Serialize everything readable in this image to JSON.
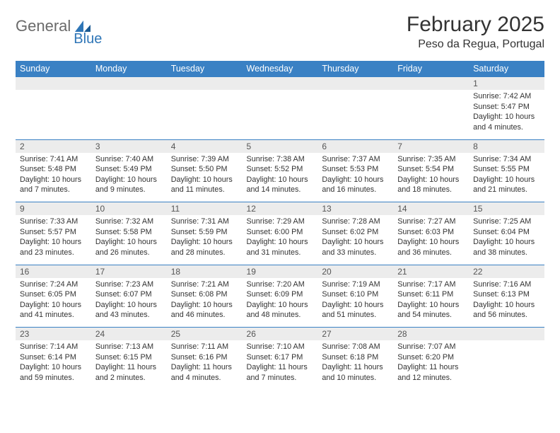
{
  "logo": {
    "word1": "General",
    "word2": "Blue"
  },
  "title": "February 2025",
  "location": "Peso da Regua, Portugal",
  "colors": {
    "header_bg": "#3a81c4",
    "header_text": "#ffffff",
    "daynum_bg": "#ececec",
    "daynum_text": "#555555",
    "border": "#3a81c4",
    "text": "#333333",
    "logo_gray": "#6a6a6a",
    "logo_blue": "#2f76b7"
  },
  "weekdays": [
    "Sunday",
    "Monday",
    "Tuesday",
    "Wednesday",
    "Thursday",
    "Friday",
    "Saturday"
  ],
  "weeks": [
    [
      null,
      null,
      null,
      null,
      null,
      null,
      {
        "n": "1",
        "sunrise": "Sunrise: 7:42 AM",
        "sunset": "Sunset: 5:47 PM",
        "daylight": "Daylight: 10 hours and 4 minutes."
      }
    ],
    [
      {
        "n": "2",
        "sunrise": "Sunrise: 7:41 AM",
        "sunset": "Sunset: 5:48 PM",
        "daylight": "Daylight: 10 hours and 7 minutes."
      },
      {
        "n": "3",
        "sunrise": "Sunrise: 7:40 AM",
        "sunset": "Sunset: 5:49 PM",
        "daylight": "Daylight: 10 hours and 9 minutes."
      },
      {
        "n": "4",
        "sunrise": "Sunrise: 7:39 AM",
        "sunset": "Sunset: 5:50 PM",
        "daylight": "Daylight: 10 hours and 11 minutes."
      },
      {
        "n": "5",
        "sunrise": "Sunrise: 7:38 AM",
        "sunset": "Sunset: 5:52 PM",
        "daylight": "Daylight: 10 hours and 14 minutes."
      },
      {
        "n": "6",
        "sunrise": "Sunrise: 7:37 AM",
        "sunset": "Sunset: 5:53 PM",
        "daylight": "Daylight: 10 hours and 16 minutes."
      },
      {
        "n": "7",
        "sunrise": "Sunrise: 7:35 AM",
        "sunset": "Sunset: 5:54 PM",
        "daylight": "Daylight: 10 hours and 18 minutes."
      },
      {
        "n": "8",
        "sunrise": "Sunrise: 7:34 AM",
        "sunset": "Sunset: 5:55 PM",
        "daylight": "Daylight: 10 hours and 21 minutes."
      }
    ],
    [
      {
        "n": "9",
        "sunrise": "Sunrise: 7:33 AM",
        "sunset": "Sunset: 5:57 PM",
        "daylight": "Daylight: 10 hours and 23 minutes."
      },
      {
        "n": "10",
        "sunrise": "Sunrise: 7:32 AM",
        "sunset": "Sunset: 5:58 PM",
        "daylight": "Daylight: 10 hours and 26 minutes."
      },
      {
        "n": "11",
        "sunrise": "Sunrise: 7:31 AM",
        "sunset": "Sunset: 5:59 PM",
        "daylight": "Daylight: 10 hours and 28 minutes."
      },
      {
        "n": "12",
        "sunrise": "Sunrise: 7:29 AM",
        "sunset": "Sunset: 6:00 PM",
        "daylight": "Daylight: 10 hours and 31 minutes."
      },
      {
        "n": "13",
        "sunrise": "Sunrise: 7:28 AM",
        "sunset": "Sunset: 6:02 PM",
        "daylight": "Daylight: 10 hours and 33 minutes."
      },
      {
        "n": "14",
        "sunrise": "Sunrise: 7:27 AM",
        "sunset": "Sunset: 6:03 PM",
        "daylight": "Daylight: 10 hours and 36 minutes."
      },
      {
        "n": "15",
        "sunrise": "Sunrise: 7:25 AM",
        "sunset": "Sunset: 6:04 PM",
        "daylight": "Daylight: 10 hours and 38 minutes."
      }
    ],
    [
      {
        "n": "16",
        "sunrise": "Sunrise: 7:24 AM",
        "sunset": "Sunset: 6:05 PM",
        "daylight": "Daylight: 10 hours and 41 minutes."
      },
      {
        "n": "17",
        "sunrise": "Sunrise: 7:23 AM",
        "sunset": "Sunset: 6:07 PM",
        "daylight": "Daylight: 10 hours and 43 minutes."
      },
      {
        "n": "18",
        "sunrise": "Sunrise: 7:21 AM",
        "sunset": "Sunset: 6:08 PM",
        "daylight": "Daylight: 10 hours and 46 minutes."
      },
      {
        "n": "19",
        "sunrise": "Sunrise: 7:20 AM",
        "sunset": "Sunset: 6:09 PM",
        "daylight": "Daylight: 10 hours and 48 minutes."
      },
      {
        "n": "20",
        "sunrise": "Sunrise: 7:19 AM",
        "sunset": "Sunset: 6:10 PM",
        "daylight": "Daylight: 10 hours and 51 minutes."
      },
      {
        "n": "21",
        "sunrise": "Sunrise: 7:17 AM",
        "sunset": "Sunset: 6:11 PM",
        "daylight": "Daylight: 10 hours and 54 minutes."
      },
      {
        "n": "22",
        "sunrise": "Sunrise: 7:16 AM",
        "sunset": "Sunset: 6:13 PM",
        "daylight": "Daylight: 10 hours and 56 minutes."
      }
    ],
    [
      {
        "n": "23",
        "sunrise": "Sunrise: 7:14 AM",
        "sunset": "Sunset: 6:14 PM",
        "daylight": "Daylight: 10 hours and 59 minutes."
      },
      {
        "n": "24",
        "sunrise": "Sunrise: 7:13 AM",
        "sunset": "Sunset: 6:15 PM",
        "daylight": "Daylight: 11 hours and 2 minutes."
      },
      {
        "n": "25",
        "sunrise": "Sunrise: 7:11 AM",
        "sunset": "Sunset: 6:16 PM",
        "daylight": "Daylight: 11 hours and 4 minutes."
      },
      {
        "n": "26",
        "sunrise": "Sunrise: 7:10 AM",
        "sunset": "Sunset: 6:17 PM",
        "daylight": "Daylight: 11 hours and 7 minutes."
      },
      {
        "n": "27",
        "sunrise": "Sunrise: 7:08 AM",
        "sunset": "Sunset: 6:18 PM",
        "daylight": "Daylight: 11 hours and 10 minutes."
      },
      {
        "n": "28",
        "sunrise": "Sunrise: 7:07 AM",
        "sunset": "Sunset: 6:20 PM",
        "daylight": "Daylight: 11 hours and 12 minutes."
      },
      null
    ]
  ]
}
